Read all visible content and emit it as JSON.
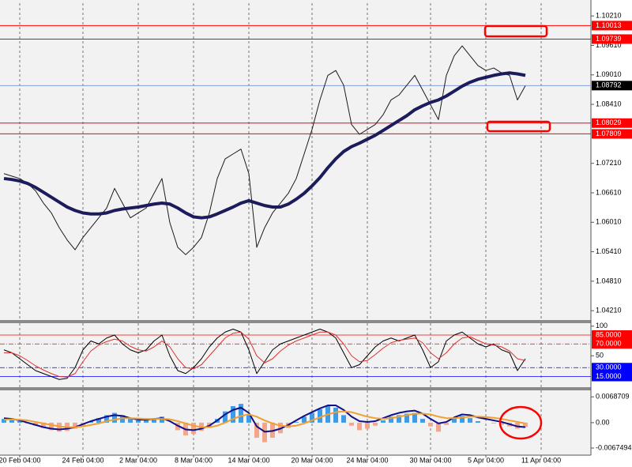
{
  "chart_data": [
    {
      "type": "line",
      "grid": true,
      "ylim": [
        1.0402,
        1.1047
      ],
      "yticks": [
        {
          "value": 1.1021,
          "label": "1.10210"
        },
        {
          "value": 1.0961,
          "label": "1.09610"
        },
        {
          "value": 1.0901,
          "label": "1.09010"
        },
        {
          "value": 1.0841,
          "label": "1.08410"
        },
        {
          "value": 1.0721,
          "label": "1.07210"
        },
        {
          "value": 1.0661,
          "label": "1.06610"
        },
        {
          "value": 1.0601,
          "label": "1.06010"
        },
        {
          "value": 1.0541,
          "label": "1.05410"
        },
        {
          "value": 1.0481,
          "label": "1.04810"
        },
        {
          "value": 1.0421,
          "label": "1.04210"
        }
      ],
      "hlines": [
        {
          "value": 1.10013,
          "color": "#ff0000"
        },
        {
          "value": 1.09739,
          "color": "#ff0000"
        },
        {
          "value": 1.08792,
          "color": "#7fa0e0",
          "label_color": "#000000"
        },
        {
          "value": 1.08029,
          "color": "#ff0000"
        },
        {
          "value": 1.07809,
          "color": "#ff0000"
        }
      ],
      "series": [
        {
          "color": "#1a1a1a",
          "width": 1,
          "values": [
            1.07,
            1.0695,
            1.069,
            1.068,
            1.0665,
            1.064,
            1.062,
            1.059,
            1.0565,
            1.0545,
            1.057,
            1.059,
            1.061,
            1.063,
            1.067,
            1.064,
            1.061,
            1.062,
            1.063,
            1.066,
            1.069,
            1.06,
            1.055,
            1.0535,
            1.055,
            1.057,
            1.062,
            1.069,
            1.073,
            1.074,
            1.075,
            1.07,
            1.055,
            1.059,
            1.062,
            1.064,
            1.066,
            1.069,
            1.074,
            1.079,
            1.085,
            1.09,
            1.091,
            1.088,
            1.08,
            1.078,
            1.079,
            1.08,
            1.082,
            1.085,
            1.086,
            1.088,
            1.09,
            1.087,
            1.084,
            1.081,
            1.09,
            1.094,
            1.096,
            1.094,
            1.092,
            1.091,
            1.0915,
            1.0905,
            1.09,
            1.085,
            1.0879,
            null,
            null,
            null
          ]
        },
        {
          "color": "#1c1c5c",
          "width": 4,
          "values": [
            1.069,
            1.0688,
            1.0685,
            1.068,
            1.0672,
            1.0662,
            1.0652,
            1.0642,
            1.0632,
            1.0625,
            1.062,
            1.0618,
            1.0618,
            1.062,
            1.0625,
            1.0628,
            1.063,
            1.0632,
            1.0635,
            1.0638,
            1.064,
            1.0638,
            1.063,
            1.062,
            1.0612,
            1.061,
            1.0612,
            1.0618,
            1.0625,
            1.0632,
            1.064,
            1.0645,
            1.064,
            1.0635,
            1.0632,
            1.0632,
            1.0638,
            1.0648,
            1.066,
            1.0675,
            1.0692,
            1.0712,
            1.073,
            1.0745,
            1.0755,
            1.0762,
            1.077,
            1.0778,
            1.0788,
            1.0798,
            1.0808,
            1.0818,
            1.083,
            1.0838,
            1.0845,
            1.085,
            1.0858,
            1.0868,
            1.0878,
            1.0886,
            1.0892,
            1.0896,
            1.09,
            1.0903,
            1.0905,
            1.0903,
            1.09,
            null,
            null,
            null
          ]
        }
      ]
    },
    {
      "type": "line",
      "grid": true,
      "ylim": [
        -3,
        105
      ],
      "yticks": [
        100,
        50
      ],
      "levels": [
        {
          "value": 85,
          "label": "85.0000",
          "color": "#ff0000",
          "style": "solid"
        },
        {
          "value": 70,
          "label": "70.0000",
          "color": "#ff0000",
          "style": "dashdot"
        },
        {
          "value": 30,
          "label": "30.0000",
          "color": "#0000ff",
          "style": "dashdot"
        },
        {
          "value": 15,
          "label": "15.0000",
          "color": "#0000ff",
          "style": "solid"
        }
      ],
      "series": [
        {
          "color": "#000000",
          "width": 1,
          "values": [
            60,
            55,
            45,
            35,
            25,
            20,
            15,
            10,
            12,
            30,
            60,
            75,
            70,
            80,
            85,
            70,
            60,
            55,
            60,
            75,
            85,
            50,
            25,
            20,
            30,
            45,
            65,
            80,
            90,
            95,
            90,
            60,
            20,
            40,
            60,
            70,
            75,
            80,
            85,
            90,
            95,
            90,
            80,
            55,
            30,
            35,
            50,
            65,
            75,
            80,
            75,
            80,
            85,
            60,
            30,
            40,
            75,
            85,
            90,
            80,
            70,
            65,
            70,
            60,
            55,
            25,
            45,
            null,
            null,
            null
          ]
        },
        {
          "color": "#e03030",
          "width": 1,
          "values": [
            55,
            55,
            50,
            42,
            33,
            26,
            20,
            15,
            14,
            20,
            40,
            58,
            68,
            74,
            78,
            75,
            66,
            60,
            58,
            65,
            75,
            65,
            45,
            30,
            28,
            35,
            50,
            65,
            80,
            88,
            90,
            78,
            50,
            38,
            45,
            58,
            68,
            75,
            80,
            85,
            90,
            90,
            85,
            70,
            50,
            40,
            42,
            52,
            63,
            72,
            76,
            78,
            80,
            72,
            55,
            45,
            55,
            70,
            80,
            82,
            76,
            70,
            68,
            65,
            58,
            45,
            42,
            null,
            null,
            null
          ]
        }
      ]
    },
    {
      "type": "bar",
      "grid": true,
      "ylim": [
        -0.0078,
        0.0086
      ],
      "yticks": [
        0.0068709,
        {
          "value": 0,
          "label": "0.00"
        },
        -0.0067494
      ],
      "categories": [
        null,
        null,
        "20 Feb 04:00",
        null,
        null,
        null,
        null,
        null,
        null,
        null,
        "24 Feb 04:00",
        null,
        null,
        null,
        null,
        null,
        null,
        "2 Mar 04:00",
        null,
        null,
        null,
        null,
        null,
        null,
        "8 Mar 04:00",
        null,
        null,
        null,
        null,
        null,
        null,
        "14 Mar 04:00",
        null,
        null,
        null,
        null,
        null,
        null,
        null,
        "20 Mar 04:00",
        null,
        null,
        null,
        null,
        null,
        null,
        "24 Mar 04:00",
        null,
        null,
        null,
        null,
        null,
        null,
        null,
        "30 Mar 04:00",
        null,
        null,
        null,
        null,
        null,
        null,
        "5 Apr 04:00",
        null,
        null,
        null,
        null,
        null,
        null,
        "11 Apr 04:00",
        null
      ],
      "series": [
        {
          "type": "bar",
          "color": "#3d9be8",
          "negative_color": "#f4a58a",
          "values": [
            0.001,
            0.0008,
            0.0004,
            -0.0002,
            -0.0008,
            -0.0014,
            -0.002,
            -0.0024,
            -0.0022,
            -0.0016,
            -0.0008,
            0.0004,
            0.0012,
            0.002,
            0.0026,
            0.002,
            0.001,
            0.0006,
            0.0008,
            0.0012,
            0.0016,
            0.0,
            -0.002,
            -0.0034,
            -0.003,
            -0.0022,
            -0.001,
            0.001,
            0.003,
            0.0044,
            0.005,
            0.002,
            -0.004,
            -0.0052,
            -0.004,
            -0.0028,
            -0.0014,
            0.0002,
            0.0016,
            0.0026,
            0.0036,
            0.0044,
            0.004,
            0.002,
            -0.0008,
            -0.002,
            -0.0016,
            -0.0008,
            0.0006,
            0.0016,
            0.002,
            0.0024,
            0.0026,
            0.001,
            -0.001,
            -0.0024,
            -0.0006,
            0.0012,
            0.0018,
            0.0012,
            0.0004,
            0.0,
            -0.0002,
            -0.0006,
            -0.001,
            -0.0016,
            -0.0012,
            null,
            null,
            null
          ]
        },
        {
          "type": "line",
          "color": "#10108a",
          "width": 2,
          "values": [
            0.0012,
            0.001,
            0.0006,
            0.0,
            -0.0006,
            -0.0012,
            -0.0016,
            -0.0018,
            -0.0016,
            -0.0012,
            -0.0004,
            0.0004,
            0.001,
            0.0016,
            0.002,
            0.0018,
            0.0012,
            0.0008,
            0.0008,
            0.001,
            0.0012,
            0.0004,
            -0.0008,
            -0.0018,
            -0.002,
            -0.0016,
            -0.0008,
            0.0006,
            0.0022,
            0.0034,
            0.004,
            0.0026,
            -0.001,
            -0.0024,
            -0.0022,
            -0.0016,
            -0.0006,
            0.0006,
            0.0018,
            0.0028,
            0.0038,
            0.0046,
            0.0046,
            0.0034,
            0.0016,
            0.0004,
            0.0002,
            0.0004,
            0.0012,
            0.002,
            0.0026,
            0.003,
            0.0032,
            0.0024,
            0.001,
            -0.0002,
            0.0002,
            0.0014,
            0.0022,
            0.002,
            0.0014,
            0.001,
            0.0006,
            0.0002,
            -0.0004,
            -0.001,
            -0.0012,
            null,
            null,
            null
          ]
        },
        {
          "type": "line",
          "color": "#f0a030",
          "width": 2,
          "values": [
            0.0008,
            0.0009,
            0.0008,
            0.0006,
            0.0002,
            -0.0002,
            -0.0006,
            -0.001,
            -0.0012,
            -0.0012,
            -0.001,
            -0.0006,
            -0.0002,
            0.0004,
            0.0008,
            0.0012,
            0.0012,
            0.0011,
            0.001,
            0.001,
            0.001,
            0.0009,
            0.0004,
            -0.0002,
            -0.0008,
            -0.0012,
            -0.0012,
            -0.0008,
            0.0,
            0.001,
            0.0018,
            0.0022,
            0.0016,
            0.0006,
            -0.0002,
            -0.0008,
            -0.001,
            -0.0008,
            -0.0002,
            0.0006,
            0.0014,
            0.0022,
            0.0028,
            0.003,
            0.0028,
            0.0022,
            0.0016,
            0.0012,
            0.001,
            0.0012,
            0.0016,
            0.002,
            0.0024,
            0.0024,
            0.0022,
            0.0016,
            0.0012,
            0.0012,
            0.0014,
            0.0016,
            0.0016,
            0.0015,
            0.0013,
            0.001,
            0.0006,
            0.0002,
            -0.0002,
            null,
            null,
            null
          ]
        }
      ]
    }
  ]
}
